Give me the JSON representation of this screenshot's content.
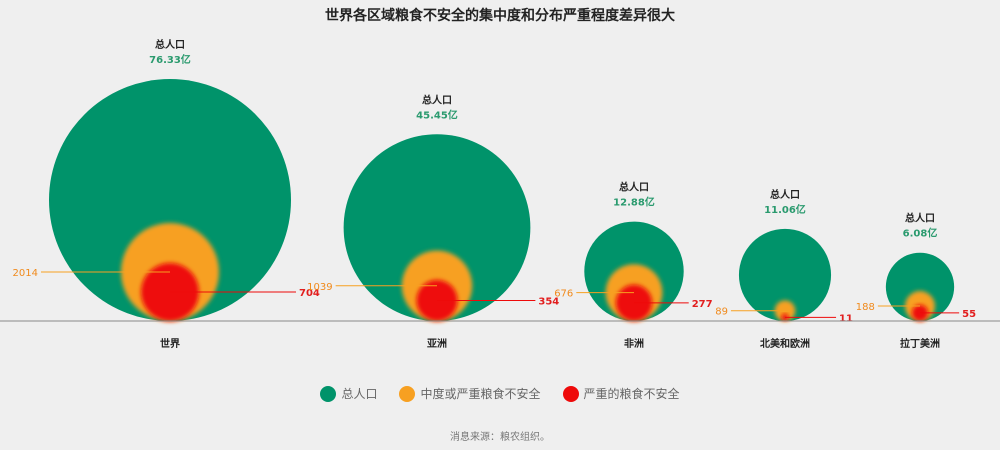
{
  "colors": {
    "total": "#00936a",
    "moderate": "#f7a021",
    "severe": "#ee0a0a",
    "total_text": "#2a9a6e",
    "moderate_text": "#f08a1c",
    "severe_text": "#e21e1e"
  },
  "legend": {
    "total": "总人口",
    "moderate": "中度或严重粮食不安全",
    "severe": "严重的粮食不安全"
  },
  "source": "消息来源：粮农组织。",
  "chart_data": {
    "type": "bubble",
    "title": "世界各区域粮食不安全的集中度和分布严重程度差异很大",
    "total_label": "总人口",
    "categories": [
      "世界",
      "亚洲",
      "非洲",
      "北美和欧洲",
      "拉丁美洲"
    ],
    "series": [
      {
        "name": "总人口",
        "key": "total",
        "values": [
          76.33,
          45.45,
          12.88,
          11.06,
          6.08
        ],
        "labels": [
          "76.33亿",
          "45.45亿",
          "12.88亿",
          "11.06亿",
          "6.08亿"
        ]
      },
      {
        "name": "中度或严重粮食不安全",
        "key": "moderate",
        "values": [
          2014,
          1039,
          676,
          89,
          188
        ],
        "labels": [
          "2014",
          "1039",
          "676",
          "89",
          "188"
        ]
      },
      {
        "name": "严重的粮食不安全",
        "key": "severe",
        "values": [
          704,
          354,
          277,
          11,
          55
        ],
        "labels": [
          "704",
          "354",
          "277",
          "11",
          "55"
        ]
      }
    ]
  }
}
